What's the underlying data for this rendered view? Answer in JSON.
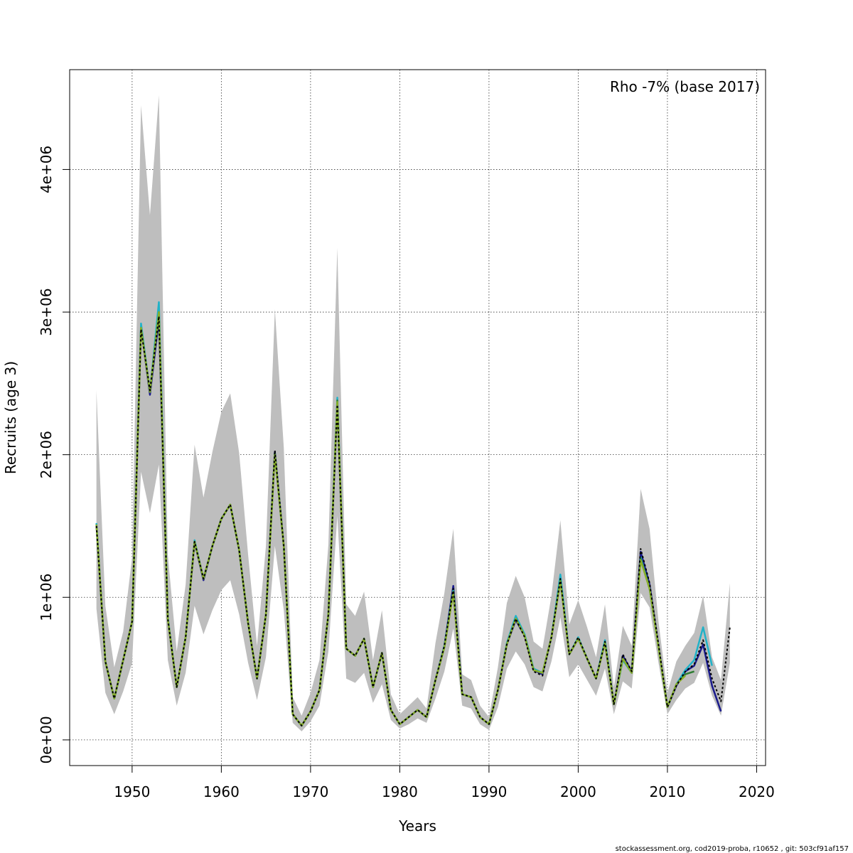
{
  "chart_data": {
    "type": "line",
    "xlabel": "Years",
    "ylabel": "Recruits (age 3)",
    "xlim": [
      1943,
      2021
    ],
    "ylim": [
      -180000,
      4700000
    ],
    "xticks": [
      {
        "value": 1950,
        "label": "1950"
      },
      {
        "value": 1960,
        "label": "1960"
      },
      {
        "value": 1970,
        "label": "1970"
      },
      {
        "value": 1980,
        "label": "1980"
      },
      {
        "value": 1990,
        "label": "1990"
      },
      {
        "value": 2000,
        "label": "2000"
      },
      {
        "value": 2010,
        "label": "2010"
      },
      {
        "value": 2020,
        "label": "2020"
      }
    ],
    "yticks": [
      {
        "value": 0,
        "label": "0e+00"
      },
      {
        "value": 1000000,
        "label": "1e+06"
      },
      {
        "value": 2000000,
        "label": "2e+06"
      },
      {
        "value": 3000000,
        "label": "3e+06"
      },
      {
        "value": 4000000,
        "label": "4e+06"
      }
    ],
    "grid": true,
    "annotation": "Rho -7% (base 2017)",
    "band_color": "#bebebe",
    "band": {
      "x": [
        1946,
        1947,
        1948,
        1949,
        1950,
        1951,
        1952,
        1953,
        1954,
        1955,
        1956,
        1957,
        1958,
        1959,
        1960,
        1961,
        1962,
        1963,
        1964,
        1965,
        1966,
        1967,
        1968,
        1969,
        1970,
        1971,
        1972,
        1973,
        1974,
        1975,
        1976,
        1977,
        1978,
        1979,
        1980,
        1981,
        1982,
        1983,
        1984,
        1985,
        1986,
        1987,
        1988,
        1989,
        1990,
        1991,
        1992,
        1993,
        1994,
        1995,
        1996,
        1997,
        1998,
        1999,
        2000,
        2001,
        2002,
        2003,
        2004,
        2005,
        2006,
        2007,
        2008,
        2009,
        2010,
        2011,
        2012,
        2013,
        2014,
        2015,
        2016,
        2017
      ],
      "lower": [
        920000,
        330000,
        180000,
        340000,
        540000,
        1880000,
        1590000,
        1930000,
        560000,
        240000,
        470000,
        940000,
        740000,
        910000,
        1050000,
        1120000,
        880000,
        540000,
        280000,
        580000,
        1360000,
        910000,
        120000,
        60000,
        130000,
        240000,
        620000,
        1570000,
        430000,
        400000,
        470000,
        260000,
        390000,
        140000,
        80000,
        110000,
        150000,
        120000,
        290000,
        480000,
        780000,
        240000,
        220000,
        110000,
        70000,
        230000,
        500000,
        620000,
        530000,
        370000,
        340000,
        550000,
        860000,
        440000,
        530000,
        420000,
        310000,
        500000,
        180000,
        410000,
        360000,
        1030000,
        930000,
        540000,
        180000,
        280000,
        360000,
        400000,
        540000,
        310000,
        170000,
        540000
      ],
      "upper": [
        2450000,
        940000,
        510000,
        760000,
        1280000,
        4450000,
        3680000,
        4520000,
        1300000,
        620000,
        1090000,
        2070000,
        1700000,
        2020000,
        2300000,
        2430000,
        2010000,
        1300000,
        660000,
        1360000,
        3020000,
        2050000,
        300000,
        170000,
        330000,
        560000,
        1370000,
        3450000,
        950000,
        870000,
        1040000,
        560000,
        910000,
        320000,
        180000,
        240000,
        300000,
        220000,
        680000,
        1030000,
        1480000,
        460000,
        420000,
        240000,
        160000,
        510000,
        960000,
        1150000,
        1000000,
        690000,
        640000,
        1010000,
        1540000,
        810000,
        980000,
        790000,
        580000,
        950000,
        370000,
        800000,
        660000,
        1760000,
        1480000,
        830000,
        330000,
        550000,
        660000,
        750000,
        1010000,
        580000,
        420000,
        1100000
      ]
    },
    "series": [
      {
        "color": "#000000",
        "dash": true,
        "x": [
          1946,
          1947,
          1948,
          1949,
          1950,
          1951,
          1952,
          1953,
          1954,
          1955,
          1956,
          1957,
          1958,
          1959,
          1960,
          1961,
          1962,
          1963,
          1964,
          1965,
          1966,
          1967,
          1968,
          1969,
          1970,
          1971,
          1972,
          1973,
          1974,
          1975,
          1976,
          1977,
          1978,
          1979,
          1980,
          1981,
          1982,
          1983,
          1984,
          1985,
          1986,
          1987,
          1988,
          1989,
          1990,
          1991,
          1992,
          1993,
          1994,
          1995,
          1996,
          1997,
          1998,
          1999,
          2000,
          2001,
          2002,
          2003,
          2004,
          2005,
          2006,
          2007,
          2008,
          2009,
          2010,
          2011,
          2012,
          2013,
          2014,
          2015,
          2016,
          2017
        ],
        "values": [
          1500000,
          550000,
          290000,
          560000,
          830000,
          2880000,
          2450000,
          2970000,
          850000,
          370000,
          720000,
          1390000,
          1130000,
          1360000,
          1550000,
          1650000,
          1330000,
          820000,
          430000,
          880000,
          2030000,
          1360000,
          180000,
          100000,
          200000,
          350000,
          880000,
          2350000,
          640000,
          590000,
          710000,
          370000,
          610000,
          210000,
          110000,
          160000,
          210000,
          160000,
          420000,
          660000,
          1060000,
          320000,
          300000,
          160000,
          110000,
          350000,
          670000,
          850000,
          720000,
          480000,
          450000,
          720000,
          1130000,
          600000,
          720000,
          570000,
          430000,
          690000,
          250000,
          600000,
          480000,
          1340000,
          1100000,
          670000,
          230000,
          380000,
          480000,
          530000,
          700000,
          430000,
          270000,
          790000
        ]
      },
      {
        "color": "#1a1a8c",
        "x": [
          1946,
          1947,
          1948,
          1949,
          1950,
          1951,
          1952,
          1953,
          1954,
          1955,
          1956,
          1957,
          1958,
          1959,
          1960,
          1961,
          1962,
          1963,
          1964,
          1965,
          1966,
          1967,
          1968,
          1969,
          1970,
          1971,
          1972,
          1973,
          1974,
          1975,
          1976,
          1977,
          1978,
          1979,
          1980,
          1981,
          1982,
          1983,
          1984,
          1985,
          1986,
          1987,
          1988,
          1989,
          1990,
          1991,
          1992,
          1993,
          1994,
          1995,
          1996,
          1997,
          1998,
          1999,
          2000,
          2001,
          2002,
          2003,
          2004,
          2005,
          2006,
          2007,
          2008,
          2009,
          2010,
          2011,
          2012,
          2013,
          2014,
          2015,
          2016
        ],
        "values": [
          1510000,
          550000,
          290000,
          560000,
          830000,
          2900000,
          2420000,
          2950000,
          850000,
          370000,
          720000,
          1390000,
          1120000,
          1360000,
          1550000,
          1650000,
          1330000,
          820000,
          430000,
          880000,
          2020000,
          1360000,
          180000,
          100000,
          200000,
          350000,
          880000,
          2360000,
          640000,
          590000,
          710000,
          370000,
          610000,
          210000,
          110000,
          160000,
          210000,
          160000,
          420000,
          660000,
          1080000,
          320000,
          300000,
          160000,
          110000,
          350000,
          670000,
          840000,
          730000,
          490000,
          460000,
          720000,
          1130000,
          600000,
          710000,
          570000,
          430000,
          690000,
          250000,
          590000,
          480000,
          1320000,
          1090000,
          660000,
          230000,
          380000,
          480000,
          520000,
          670000,
          380000,
          200000
        ]
      },
      {
        "color": "#20b2c8",
        "x": [
          1946,
          1947,
          1948,
          1949,
          1950,
          1951,
          1952,
          1953,
          1954,
          1955,
          1956,
          1957,
          1958,
          1959,
          1960,
          1961,
          1962,
          1963,
          1964,
          1965,
          1966,
          1967,
          1968,
          1969,
          1970,
          1971,
          1972,
          1973,
          1974,
          1975,
          1976,
          1977,
          1978,
          1979,
          1980,
          1981,
          1982,
          1983,
          1984,
          1985,
          1986,
          1987,
          1988,
          1989,
          1990,
          1991,
          1992,
          1993,
          1994,
          1995,
          1996,
          1997,
          1998,
          1999,
          2000,
          2001,
          2002,
          2003,
          2004,
          2005,
          2006,
          2007,
          2008,
          2009,
          2010,
          2011,
          2012,
          2013,
          2014,
          2015
        ],
        "values": [
          1520000,
          550000,
          290000,
          560000,
          830000,
          2920000,
          2440000,
          3070000,
          860000,
          370000,
          720000,
          1400000,
          1130000,
          1360000,
          1550000,
          1650000,
          1330000,
          820000,
          430000,
          880000,
          2010000,
          1360000,
          180000,
          100000,
          200000,
          350000,
          880000,
          2400000,
          640000,
          590000,
          710000,
          370000,
          610000,
          210000,
          110000,
          160000,
          210000,
          160000,
          420000,
          660000,
          1050000,
          320000,
          300000,
          160000,
          110000,
          350000,
          680000,
          870000,
          740000,
          500000,
          470000,
          720000,
          1160000,
          600000,
          720000,
          570000,
          430000,
          700000,
          250000,
          560000,
          470000,
          1280000,
          1060000,
          650000,
          230000,
          390000,
          490000,
          560000,
          790000,
          520000
        ]
      },
      {
        "color": "#2e7d32",
        "x": [
          1946,
          1947,
          1948,
          1949,
          1950,
          1951,
          1952,
          1953,
          1954,
          1955,
          1956,
          1957,
          1958,
          1959,
          1960,
          1961,
          1962,
          1963,
          1964,
          1965,
          1966,
          1967,
          1968,
          1969,
          1970,
          1971,
          1972,
          1973,
          1974,
          1975,
          1976,
          1977,
          1978,
          1979,
          1980,
          1981,
          1982,
          1983,
          1984,
          1985,
          1986,
          1987,
          1988,
          1989,
          1990,
          1991,
          1992,
          1993,
          1994,
          1995,
          1996,
          1997,
          1998,
          1999,
          2000,
          2001,
          2002,
          2003,
          2004,
          2005,
          2006,
          2007,
          2008,
          2009,
          2010,
          2011,
          2012,
          2013
        ],
        "values": [
          1510000,
          550000,
          290000,
          560000,
          830000,
          2890000,
          2440000,
          3000000,
          850000,
          370000,
          720000,
          1390000,
          1130000,
          1360000,
          1550000,
          1650000,
          1330000,
          820000,
          430000,
          880000,
          2010000,
          1360000,
          180000,
          100000,
          200000,
          350000,
          880000,
          2380000,
          640000,
          590000,
          710000,
          370000,
          610000,
          210000,
          110000,
          160000,
          210000,
          160000,
          420000,
          650000,
          1040000,
          320000,
          300000,
          160000,
          110000,
          350000,
          670000,
          850000,
          730000,
          490000,
          470000,
          720000,
          1120000,
          600000,
          710000,
          570000,
          430000,
          680000,
          250000,
          570000,
          470000,
          1270000,
          1060000,
          650000,
          230000,
          390000,
          460000,
          480000
        ]
      },
      {
        "color": "#8ab02a",
        "x": [
          1946,
          1947,
          1948,
          1949,
          1950,
          1951,
          1952,
          1953,
          1954,
          1955,
          1956,
          1957,
          1958,
          1959,
          1960,
          1961,
          1962,
          1963,
          1964,
          1965,
          1966,
          1967,
          1968,
          1969,
          1970,
          1971,
          1972,
          1973,
          1974,
          1975,
          1976,
          1977,
          1978,
          1979,
          1980,
          1981,
          1982,
          1983,
          1984,
          1985,
          1986,
          1987,
          1988,
          1989,
          1990,
          1991,
          1992,
          1993,
          1994,
          1995,
          1996,
          1997,
          1998,
          1999,
          2000,
          2001,
          2002,
          2003,
          2004,
          2005,
          2006,
          2007,
          2008,
          2009,
          2010,
          2011,
          2012
        ],
        "values": [
          1510000,
          550000,
          290000,
          560000,
          830000,
          2890000,
          2440000,
          3000000,
          850000,
          370000,
          720000,
          1390000,
          1130000,
          1360000,
          1550000,
          1650000,
          1330000,
          820000,
          430000,
          880000,
          2000000,
          1360000,
          180000,
          100000,
          200000,
          350000,
          880000,
          2370000,
          640000,
          590000,
          710000,
          370000,
          610000,
          210000,
          110000,
          160000,
          210000,
          160000,
          420000,
          650000,
          1030000,
          320000,
          300000,
          160000,
          110000,
          350000,
          670000,
          850000,
          730000,
          490000,
          470000,
          720000,
          1110000,
          600000,
          710000,
          570000,
          430000,
          680000,
          250000,
          570000,
          470000,
          1260000,
          1060000,
          650000,
          230000,
          390000,
          450000
        ]
      }
    ]
  },
  "footer": "stockassessment.org, cod2019-proba, r10652 , git: 503cf91af157"
}
